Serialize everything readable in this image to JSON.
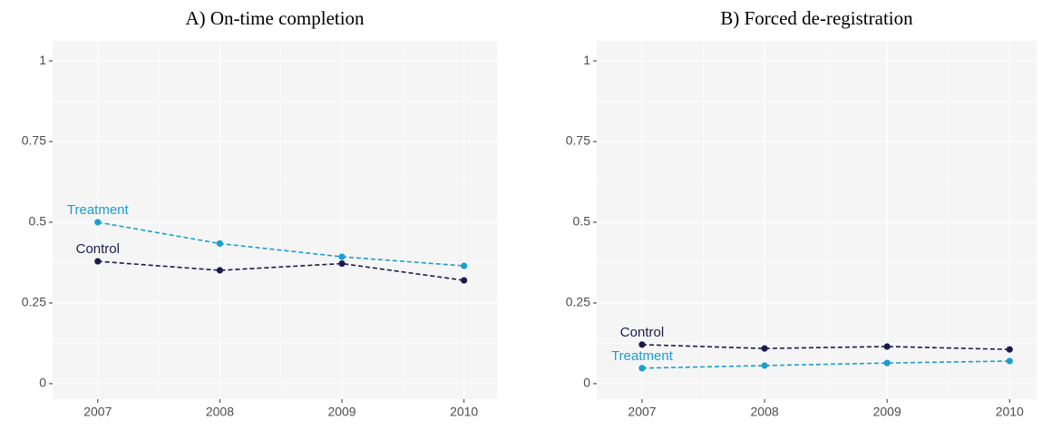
{
  "chart_data": [
    {
      "type": "line",
      "title": "A) On-time completion",
      "x": [
        2007,
        2008,
        2009,
        2010
      ],
      "series": [
        {
          "name": "Treatment",
          "color": "#1a9fcf",
          "values": [
            0.5,
            0.434,
            0.393,
            0.365
          ]
        },
        {
          "name": "Control",
          "color": "#1c1b4d",
          "values": [
            0.379,
            0.351,
            0.372,
            0.32
          ]
        }
      ],
      "xlim": [
        2006.63,
        2010.27
      ],
      "xticks": [
        2007,
        2008,
        2009,
        2010
      ],
      "ylim": [
        -0.048,
        1.062
      ],
      "yticks": [
        0,
        0.25,
        0.5,
        0.75,
        1
      ],
      "grid": true
    },
    {
      "type": "line",
      "title": "B) Forced de-registration",
      "x": [
        2007,
        2008,
        2009,
        2010
      ],
      "series": [
        {
          "name": "Control",
          "color": "#1c1b4d",
          "values": [
            0.121,
            0.109,
            0.115,
            0.106
          ]
        },
        {
          "name": "Treatment",
          "color": "#1a9fcf",
          "values": [
            0.048,
            0.056,
            0.064,
            0.07
          ]
        }
      ],
      "xlim": [
        2006.63,
        2010.22
      ],
      "xticks": [
        2007,
        2008,
        2009,
        2010
      ],
      "ylim": [
        -0.048,
        1.062
      ],
      "yticks": [
        0,
        0.25,
        0.5,
        0.75,
        1
      ],
      "grid": true
    }
  ]
}
